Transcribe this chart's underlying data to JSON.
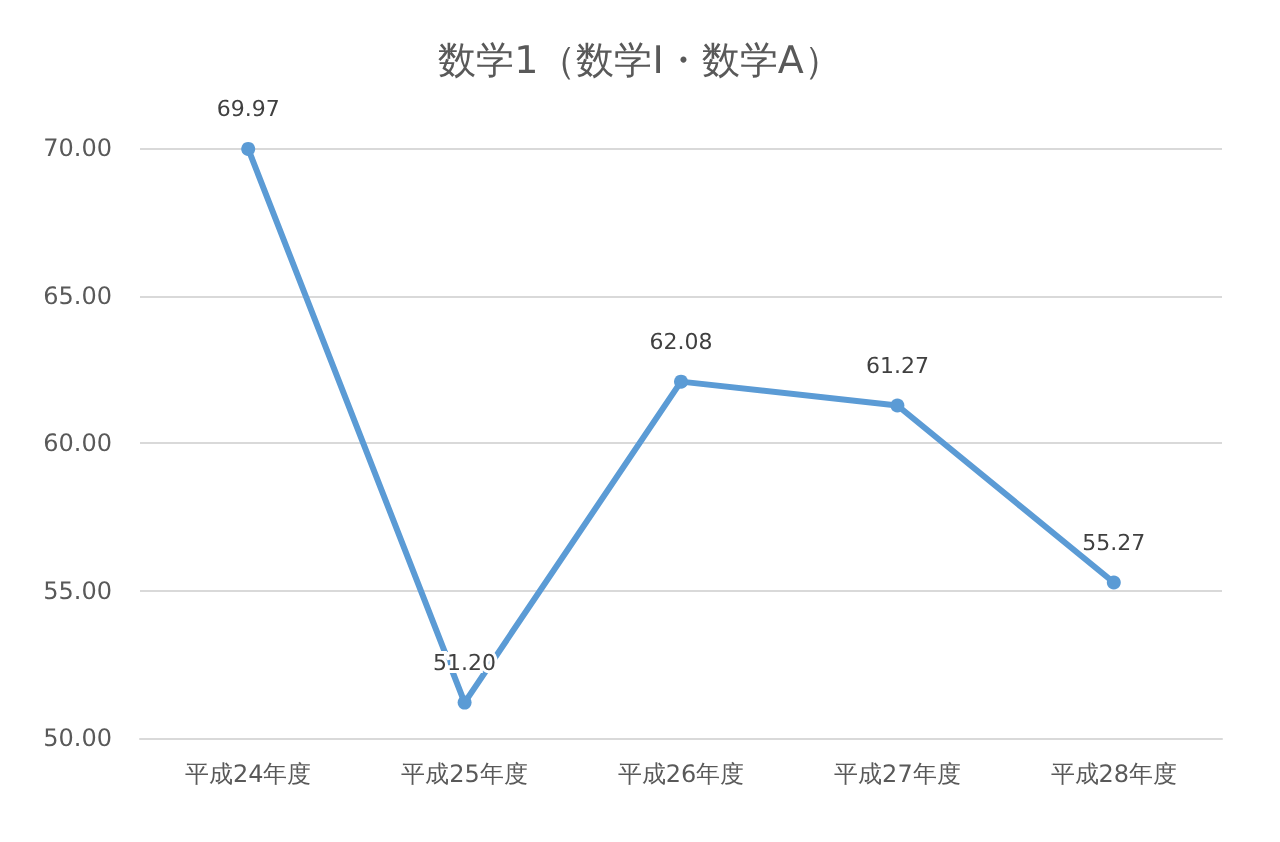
{
  "chart_data": {
    "type": "line",
    "title": "数学1（数学I・数学A）",
    "categories": [
      "平成24年度",
      "平成25年度",
      "平成26年度",
      "平成27年度",
      "平成28年度"
    ],
    "series": [
      {
        "color": "#5b9bd5",
        "values": [
          69.97,
          51.2,
          62.08,
          61.27,
          55.27
        ],
        "value_labels": [
          "69.97",
          "51.20",
          "62.08",
          "61.27",
          "55.27"
        ]
      }
    ],
    "ylim": [
      50,
      70
    ],
    "yticks": [
      {
        "value": 50,
        "label": "50.00"
      },
      {
        "value": 55,
        "label": "55.00"
      },
      {
        "value": 60,
        "label": "60.00"
      },
      {
        "value": 65,
        "label": "65.00"
      },
      {
        "value": 70,
        "label": "70.00"
      }
    ],
    "grid": "y",
    "marker": "circle",
    "line_style": "solid"
  }
}
